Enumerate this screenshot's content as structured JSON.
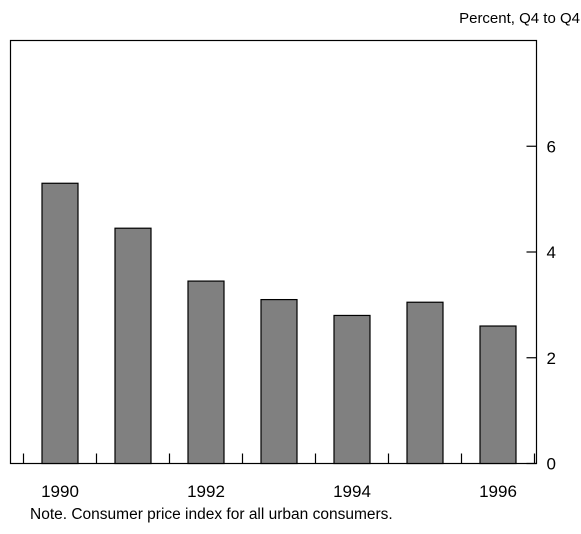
{
  "chart_data": {
    "type": "bar",
    "units_label": "Percent, Q4 to Q4",
    "note": "Note.  Consumer price index for all urban consumers.",
    "categories": [
      "1990",
      "1991",
      "1992",
      "1993",
      "1994",
      "1995",
      "1996"
    ],
    "values": [
      5.3,
      4.45,
      3.45,
      3.1,
      2.8,
      3.05,
      2.6
    ],
    "x_tick_labels": [
      "1990",
      "1992",
      "1994",
      "1996"
    ],
    "y_ticks": [
      0,
      2,
      4,
      6
    ],
    "ylim": [
      0,
      8
    ],
    "grid": false,
    "legend": "none",
    "colors": {
      "bar_fill": "#808080",
      "bar_stroke": "#000000",
      "axis": "#000000"
    }
  }
}
